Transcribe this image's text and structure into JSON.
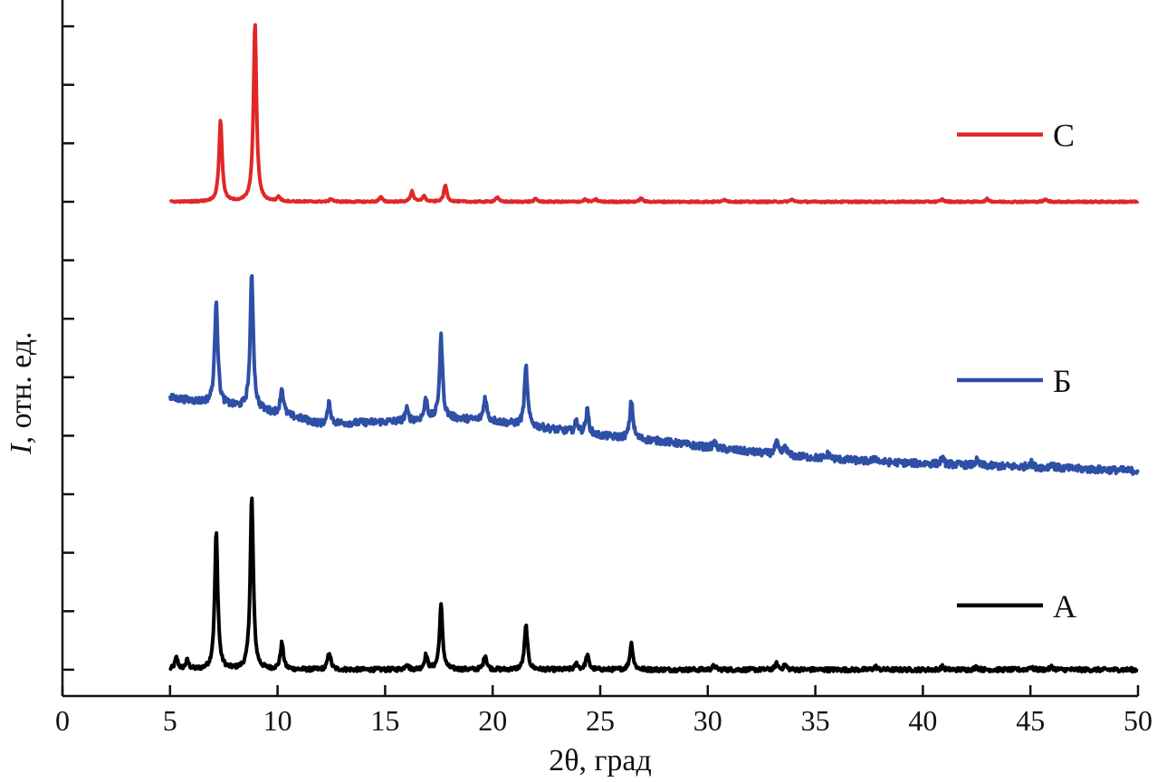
{
  "chart_data": {
    "type": "line",
    "xlabel": "2θ, град",
    "ylabel_italic": "I",
    "ylabel_rest": ", отн. ед.",
    "xlim": [
      0,
      50
    ],
    "ylim": [
      -0.45,
      11.45
    ],
    "xticks": [
      0,
      5,
      10,
      15,
      20,
      25,
      30,
      35,
      40,
      45,
      50
    ],
    "xtick_labels": [
      "0",
      "5",
      "10",
      "15",
      "20",
      "25",
      "30",
      "35",
      "40",
      "45",
      "50"
    ],
    "yticks": [
      0,
      1,
      2,
      3,
      4,
      5,
      6,
      7,
      8,
      9,
      10,
      11
    ],
    "y_tick_labels_shown": false,
    "grid": false,
    "legend_placement": "right, beside each curve",
    "series": [
      {
        "name": "A",
        "color": "#000000",
        "x_range": [
          5,
          50
        ],
        "baseline": [
          [
            5,
            0
          ],
          [
            50,
            0
          ]
        ],
        "peaks": [
          {
            "x": 5.3,
            "y": 0.2
          },
          {
            "x": 5.8,
            "y": 0.15
          },
          {
            "x": 7.15,
            "y": 2.35
          },
          {
            "x": 8.8,
            "y": 2.95
          },
          {
            "x": 10.2,
            "y": 0.45
          },
          {
            "x": 12.4,
            "y": 0.3
          },
          {
            "x": 16.0,
            "y": 0.1
          },
          {
            "x": 16.9,
            "y": 0.25
          },
          {
            "x": 17.6,
            "y": 1.1
          },
          {
            "x": 19.65,
            "y": 0.25
          },
          {
            "x": 21.55,
            "y": 0.75
          },
          {
            "x": 23.9,
            "y": 0.1
          },
          {
            "x": 24.4,
            "y": 0.25
          },
          {
            "x": 26.45,
            "y": 0.45
          },
          {
            "x": 30.3,
            "y": 0.07
          },
          {
            "x": 33.2,
            "y": 0.1
          },
          {
            "x": 33.6,
            "y": 0.08
          },
          {
            "x": 37.8,
            "y": 0.05
          },
          {
            "x": 40.9,
            "y": 0.05
          },
          {
            "x": 42.5,
            "y": 0.05
          },
          {
            "x": 45.0,
            "y": 0.05
          },
          {
            "x": 46.0,
            "y": 0.05
          }
        ]
      },
      {
        "name": "Б",
        "color": "#2e4fa6",
        "x_range": [
          5,
          50
        ],
        "baseline": [
          [
            5,
            4.65
          ],
          [
            9,
            4.45
          ],
          [
            11,
            4.3
          ],
          [
            12,
            4.2
          ],
          [
            16,
            4.25
          ],
          [
            18,
            4.3
          ],
          [
            20,
            4.25
          ],
          [
            22,
            4.15
          ],
          [
            25,
            4.0
          ],
          [
            28,
            3.9
          ],
          [
            30,
            3.8
          ],
          [
            34,
            3.65
          ],
          [
            38,
            3.55
          ],
          [
            42,
            3.5
          ],
          [
            46,
            3.45
          ],
          [
            50,
            3.4
          ]
        ],
        "peaks": [
          {
            "x": 7.15,
            "y": 1.8
          },
          {
            "x": 8.8,
            "y": 2.3
          },
          {
            "x": 10.2,
            "y": 0.45
          },
          {
            "x": 12.4,
            "y": 0.35
          },
          {
            "x": 16.0,
            "y": 0.2
          },
          {
            "x": 16.9,
            "y": 0.35
          },
          {
            "x": 17.6,
            "y": 1.4
          },
          {
            "x": 19.65,
            "y": 0.4
          },
          {
            "x": 21.55,
            "y": 1.0
          },
          {
            "x": 23.9,
            "y": 0.2
          },
          {
            "x": 24.4,
            "y": 0.4
          },
          {
            "x": 26.45,
            "y": 0.65
          },
          {
            "x": 30.3,
            "y": 0.1
          },
          {
            "x": 33.2,
            "y": 0.2
          },
          {
            "x": 33.6,
            "y": 0.15
          },
          {
            "x": 35.6,
            "y": 0.08
          },
          {
            "x": 37.8,
            "y": 0.08
          },
          {
            "x": 40.9,
            "y": 0.1
          },
          {
            "x": 42.5,
            "y": 0.08
          },
          {
            "x": 45.0,
            "y": 0.1
          },
          {
            "x": 46.0,
            "y": 0.08
          }
        ]
      },
      {
        "name": "C",
        "color": "#e02727",
        "x_range": [
          5,
          50
        ],
        "baseline": [
          [
            5,
            8.0
          ],
          [
            50,
            8.0
          ]
        ],
        "peaks": [
          {
            "x": 7.35,
            "y": 1.4
          },
          {
            "x": 8.95,
            "y": 3.05
          },
          {
            "x": 10.05,
            "y": 0.08
          },
          {
            "x": 12.5,
            "y": 0.05
          },
          {
            "x": 14.8,
            "y": 0.08
          },
          {
            "x": 16.25,
            "y": 0.18
          },
          {
            "x": 16.8,
            "y": 0.1
          },
          {
            "x": 17.8,
            "y": 0.28
          },
          {
            "x": 20.2,
            "y": 0.08
          },
          {
            "x": 22.0,
            "y": 0.05
          },
          {
            "x": 24.3,
            "y": 0.04
          },
          {
            "x": 24.8,
            "y": 0.04
          },
          {
            "x": 26.9,
            "y": 0.06
          },
          {
            "x": 30.8,
            "y": 0.04
          },
          {
            "x": 33.9,
            "y": 0.04
          },
          {
            "x": 40.9,
            "y": 0.04
          },
          {
            "x": 43.0,
            "y": 0.05
          },
          {
            "x": 45.7,
            "y": 0.04
          }
        ]
      }
    ]
  }
}
